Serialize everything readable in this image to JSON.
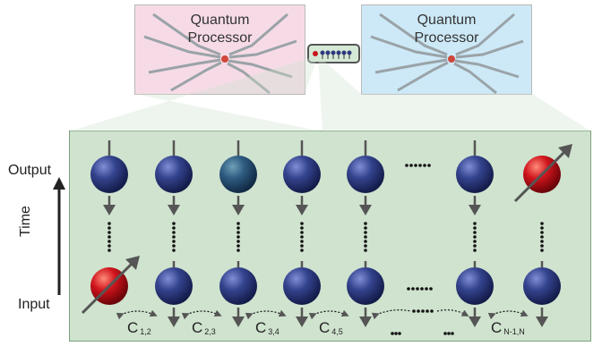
{
  "processors": [
    {
      "title_line1": "Quantum",
      "title_line2": "Processor",
      "color": "#f6dbe6"
    },
    {
      "title_line1": "Quantum",
      "title_line2": "Processor",
      "color": "#cde9f7"
    }
  ],
  "axis": {
    "output": "Output",
    "input": "Input",
    "time": "Time"
  },
  "couplings": [
    {
      "letter": "C",
      "sub": "1,2"
    },
    {
      "letter": "C",
      "sub": "2,3"
    },
    {
      "letter": "C",
      "sub": "3,4"
    },
    {
      "letter": "C",
      "sub": "4,5"
    },
    {
      "letter": "C",
      "sub": "N-1,N"
    }
  ],
  "ellipsis": "......",
  "colors": {
    "panel": "#cfe3cf",
    "qubit_blue": "#2b3a7e",
    "qubit_red": "#c8121a",
    "arrow": "#555555"
  }
}
